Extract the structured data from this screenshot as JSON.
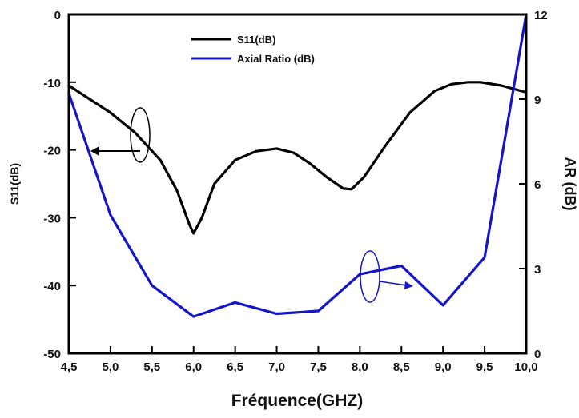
{
  "chart_data": {
    "type": "line",
    "xlabel": "Fréquence(GHZ)",
    "ylabel_left": "S11(dB)",
    "ylabel_right": "AR (dB)",
    "x_ticks": [
      "4,5",
      "5,0",
      "5,5",
      "6,0",
      "6,5",
      "7,0",
      "7,5",
      "8,0",
      "8,5",
      "9,0",
      "9,5",
      "10,0"
    ],
    "y_left_ticks": [
      "0",
      "-10",
      "-20",
      "-30",
      "-40",
      "-50"
    ],
    "y_right_ticks": [
      "12",
      "9",
      "6",
      "3",
      "0"
    ],
    "xlim": [
      4.5,
      10.0
    ],
    "ylim_left": [
      -50,
      0
    ],
    "ylim_right": [
      0,
      12
    ],
    "legend_position": "top-center",
    "series": [
      {
        "name": "S11(dB)",
        "axis": "left",
        "color": "#000000",
        "x": [
          4.5,
          5.0,
          5.3,
          5.6,
          5.8,
          5.95,
          6.0,
          6.1,
          6.25,
          6.5,
          6.75,
          7.0,
          7.2,
          7.4,
          7.6,
          7.8,
          7.9,
          8.05,
          8.3,
          8.6,
          8.9,
          9.1,
          9.3,
          9.45,
          9.7,
          10.0
        ],
        "y": [
          -10.5,
          -14.5,
          -17.5,
          -21.5,
          -26.0,
          -31.0,
          -32.3,
          -30.0,
          -25.0,
          -21.5,
          -20.2,
          -19.8,
          -20.4,
          -22.0,
          -24.0,
          -25.7,
          -25.8,
          -24.0,
          -19.5,
          -14.5,
          -11.3,
          -10.3,
          -10.0,
          -10.0,
          -10.5,
          -11.5
        ]
      },
      {
        "name": "Axial Ratio (dB)",
        "axis": "right",
        "color": "#1515c8",
        "x": [
          4.5,
          5.0,
          5.5,
          6.0,
          6.5,
          7.0,
          7.5,
          8.0,
          8.5,
          9.0,
          9.5,
          10.0
        ],
        "y": [
          9.2,
          4.9,
          2.4,
          1.3,
          1.8,
          1.4,
          1.5,
          2.8,
          3.1,
          1.7,
          3.4,
          12.0
        ]
      }
    ]
  }
}
